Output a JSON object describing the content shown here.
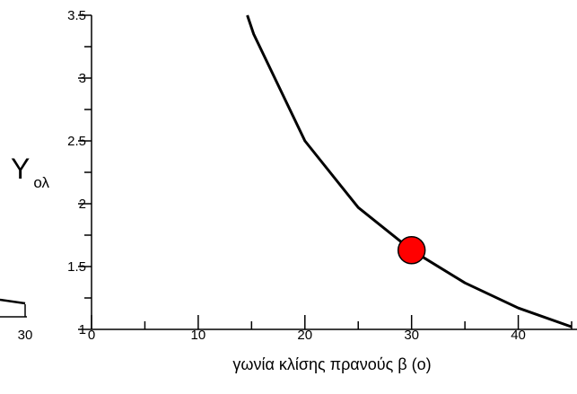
{
  "chart_data": {
    "type": "line",
    "title": "",
    "xlabel": "γωνία κλίσης πρανούς β (ο)",
    "ylabel": {
      "main": "Y",
      "sub": "ολ"
    },
    "xlim": [
      0,
      45
    ],
    "ylim": [
      1,
      3.5
    ],
    "x_ticks": [
      "0",
      "10",
      "20",
      "30",
      "40"
    ],
    "y_ticks": [
      "1",
      "1.5",
      "2",
      "2.5",
      "3",
      "3.5"
    ],
    "grid": false,
    "series": [
      {
        "x": [
          14.6,
          15.2,
          20,
          25,
          30,
          35,
          40,
          45
        ],
        "y": [
          3.5,
          3.35,
          2.5,
          1.97,
          1.63,
          1.37,
          1.17,
          1.02
        ],
        "color": "#000000"
      }
    ],
    "marker": {
      "x": 30,
      "y": 1.63,
      "color": "#ff0000"
    },
    "left_fragment": {
      "tick_label": "30",
      "color": "#000000"
    }
  }
}
